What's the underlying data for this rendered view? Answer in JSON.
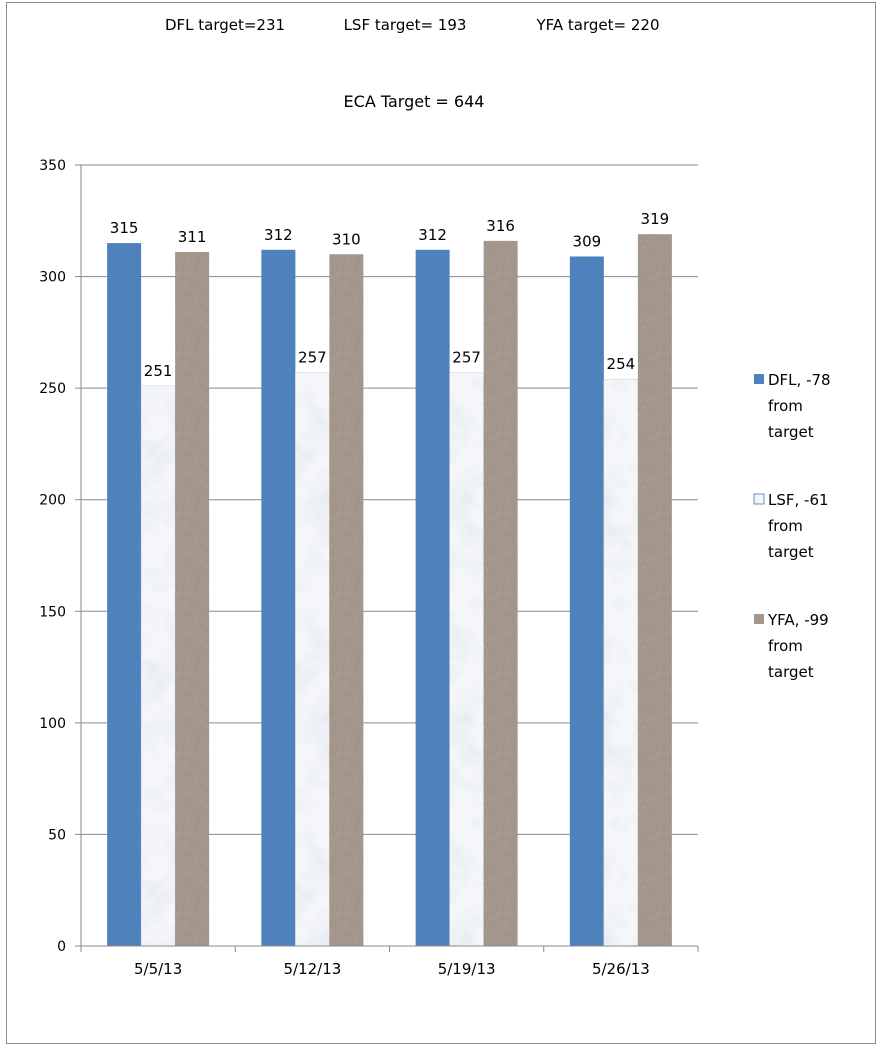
{
  "header": {
    "targets": [
      "DFL target=231",
      "LSF target= 193",
      "YFA target= 220"
    ],
    "eca_target": "ECA Target = 644"
  },
  "chart_data": {
    "type": "bar",
    "categories": [
      "5/5/13",
      "5/12/13",
      "5/19/13",
      "5/26/13"
    ],
    "series": [
      {
        "name": "DFL, -78 from target",
        "legend_lines": [
          "DFL, -78",
          "from",
          "target"
        ],
        "values": [
          315,
          312,
          312,
          309
        ],
        "color": "#4f81bd",
        "fill": "solid"
      },
      {
        "name": "LSF, -61 from target",
        "legend_lines": [
          "LSF, -61",
          "from",
          "target"
        ],
        "values": [
          251,
          257,
          257,
          254
        ],
        "color": "#e3e8ef",
        "fill": "marble"
      },
      {
        "name": "YFA, -99 from target",
        "legend_lines": [
          "YFA, -99",
          "from",
          "target"
        ],
        "values": [
          311,
          310,
          316,
          319
        ],
        "color": "#a8998a",
        "fill": "granite"
      }
    ],
    "ylim": [
      0,
      350
    ],
    "yticks": [
      0,
      50,
      100,
      150,
      200,
      250,
      300,
      350
    ],
    "title": "",
    "xlabel": "",
    "ylabel": "",
    "grid": true,
    "legend": "right"
  }
}
